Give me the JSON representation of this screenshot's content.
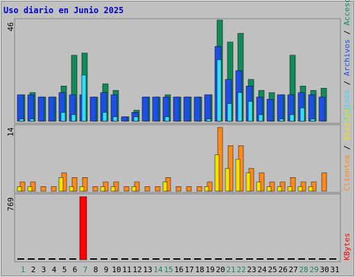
{
  "title": "Uso diario en Junio 2025",
  "colors": {
    "frame_bg": "#c0c0c0",
    "title": "#0000cc",
    "accesos": "#138a5a",
    "archivos": "#1f4fe0",
    "paginas": "#33ddff",
    "visitas": "#f2e200",
    "clientes": "#ff8a1a",
    "kbytes": "#ff0000",
    "weekend_day": "#138a5a",
    "weekday": "#000000"
  },
  "chart_data": [
    {
      "type": "bar",
      "panel": "hits",
      "ymax_label": "46",
      "ylim": [
        0,
        46
      ],
      "categories": [
        "1",
        "2",
        "3",
        "4",
        "5",
        "6",
        "7",
        "8",
        "9",
        "10",
        "11",
        "12",
        "13",
        "14",
        "15",
        "16",
        "17",
        "18",
        "19",
        "20",
        "21",
        "22",
        "23",
        "24",
        "25",
        "26",
        "27",
        "28",
        "29",
        "30",
        "31"
      ],
      "legend": [
        "Accesos",
        "Archivos",
        "Páginas"
      ],
      "series": [
        {
          "name": "Accesos",
          "values": [
            12,
            13,
            11,
            11,
            16,
            30,
            31,
            11,
            17,
            14,
            2,
            5,
            11,
            11,
            12,
            11,
            11,
            11,
            12,
            46,
            36,
            40,
            19,
            14,
            13,
            12,
            30,
            16,
            14,
            15,
            0
          ]
        },
        {
          "name": "Archivos",
          "values": [
            12,
            12,
            11,
            11,
            13,
            12,
            12,
            11,
            13,
            12,
            2,
            4,
            11,
            11,
            11,
            11,
            11,
            11,
            12,
            34,
            19,
            23,
            16,
            11,
            10,
            12,
            12,
            13,
            12,
            11,
            0
          ]
        },
        {
          "name": "Páginas",
          "values": [
            1,
            1,
            0,
            0,
            4,
            3,
            21,
            0,
            4,
            2,
            0,
            2,
            0,
            0,
            2,
            0,
            0,
            0,
            1,
            28,
            8,
            13,
            9,
            3,
            0,
            1,
            3,
            6,
            1,
            0,
            0
          ]
        }
      ]
    },
    {
      "type": "bar",
      "panel": "visits",
      "ymax_label": "14",
      "ylim": [
        0,
        14
      ],
      "categories": [
        "1",
        "2",
        "3",
        "4",
        "5",
        "6",
        "7",
        "8",
        "9",
        "10",
        "11",
        "12",
        "13",
        "14",
        "15",
        "16",
        "17",
        "18",
        "19",
        "20",
        "21",
        "22",
        "23",
        "24",
        "25",
        "26",
        "27",
        "28",
        "29",
        "30",
        "31"
      ],
      "legend": [
        "Clientes",
        "Visitas"
      ],
      "series": [
        {
          "name": "Clientes",
          "values": [
            2,
            2,
            1,
            1,
            4,
            3,
            3,
            1,
            2,
            2,
            1,
            2,
            1,
            1,
            3,
            1,
            1,
            1,
            2,
            14,
            10,
            10,
            5,
            4,
            2,
            2,
            3,
            2,
            2,
            4,
            0
          ]
        },
        {
          "name": "Visitas",
          "values": [
            1,
            1,
            0,
            0,
            3,
            1,
            1,
            0,
            1,
            1,
            0,
            1,
            0,
            0,
            2,
            0,
            0,
            0,
            1,
            8,
            5,
            7,
            4,
            2,
            1,
            1,
            1,
            1,
            1,
            0,
            0
          ]
        }
      ]
    },
    {
      "type": "bar",
      "panel": "kbytes",
      "ymax_label": "769",
      "ylim": [
        0,
        769
      ],
      "categories": [
        "1",
        "2",
        "3",
        "4",
        "5",
        "6",
        "7",
        "8",
        "9",
        "10",
        "11",
        "12",
        "13",
        "14",
        "15",
        "16",
        "17",
        "18",
        "19",
        "20",
        "21",
        "22",
        "23",
        "24",
        "25",
        "26",
        "27",
        "28",
        "29",
        "30",
        "31"
      ],
      "legend": [
        "KBytes"
      ],
      "series": [
        {
          "name": "KBytes",
          "values": [
            0,
            0,
            0,
            0,
            0,
            0,
            769,
            0,
            0,
            0,
            0,
            0,
            0,
            0,
            0,
            0,
            0,
            0,
            0,
            0,
            0,
            0,
            0,
            0,
            0,
            0,
            0,
            0,
            0,
            0,
            0
          ]
        }
      ]
    }
  ],
  "weekend_days": [
    "1",
    "7",
    "14",
    "15",
    "21",
    "22",
    "28",
    "29"
  ]
}
